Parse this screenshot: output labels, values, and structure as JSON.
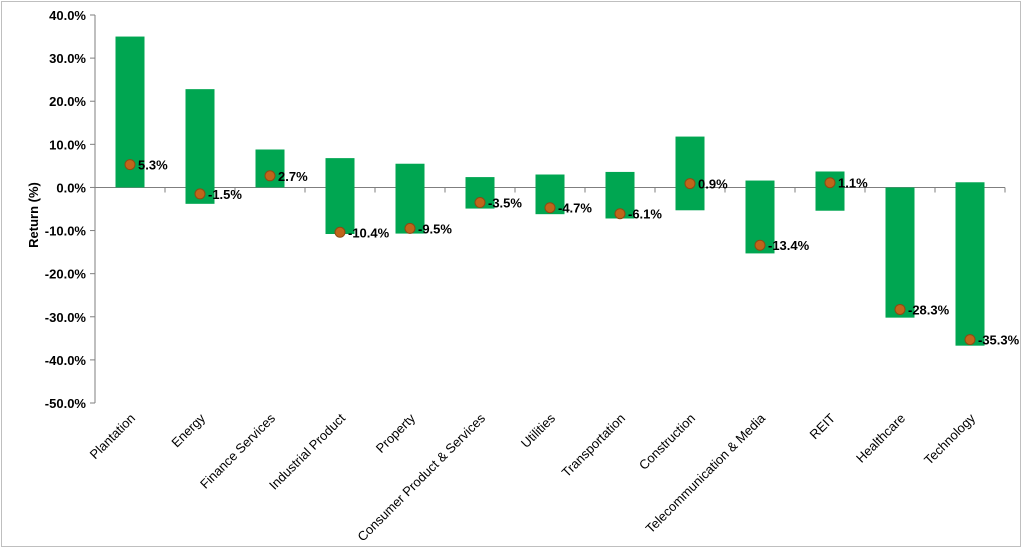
{
  "chart_data": {
    "type": "floating-bar-with-markers",
    "ylabel": "Return (%)",
    "ylim": [
      -50,
      40
    ],
    "ytick_step": 10,
    "ytick_format": "%.1f%",
    "grid": false,
    "legend": "none",
    "colors": {
      "bar": "#00a651",
      "marker": "#c0651b",
      "marker_stroke": "#8c4a14"
    },
    "categories": [
      "Plantation",
      "Energy",
      "Finance Services",
      "Industrial Product",
      "Property",
      "Consumer Product & Services",
      "Utilities",
      "Transportation",
      "Construction",
      "Telecommunication & Media",
      "REIT",
      "Healthcare",
      "Technology"
    ],
    "high": [
      35.0,
      22.8,
      8.8,
      6.8,
      5.5,
      2.4,
      3.0,
      3.6,
      11.8,
      1.6,
      3.7,
      0.0,
      1.2
    ],
    "low": [
      0.0,
      -3.8,
      0.0,
      -10.8,
      -10.7,
      -4.9,
      -6.2,
      -7.2,
      -5.3,
      -15.3,
      -5.4,
      -30.2,
      -36.7
    ],
    "values": [
      5.3,
      -1.5,
      2.7,
      -10.4,
      -9.5,
      -3.5,
      -4.7,
      -6.1,
      0.9,
      -13.4,
      1.1,
      -28.3,
      -35.3
    ],
    "value_labels": [
      "5.3%",
      "-1.5%",
      "2.7%",
      "-10.4%",
      "-9.5%",
      "-3.5%",
      "-4.7%",
      "-6.1%",
      "0.9%",
      "-13.4%",
      "1.1%",
      "-28.3%",
      "-35.3%"
    ]
  }
}
